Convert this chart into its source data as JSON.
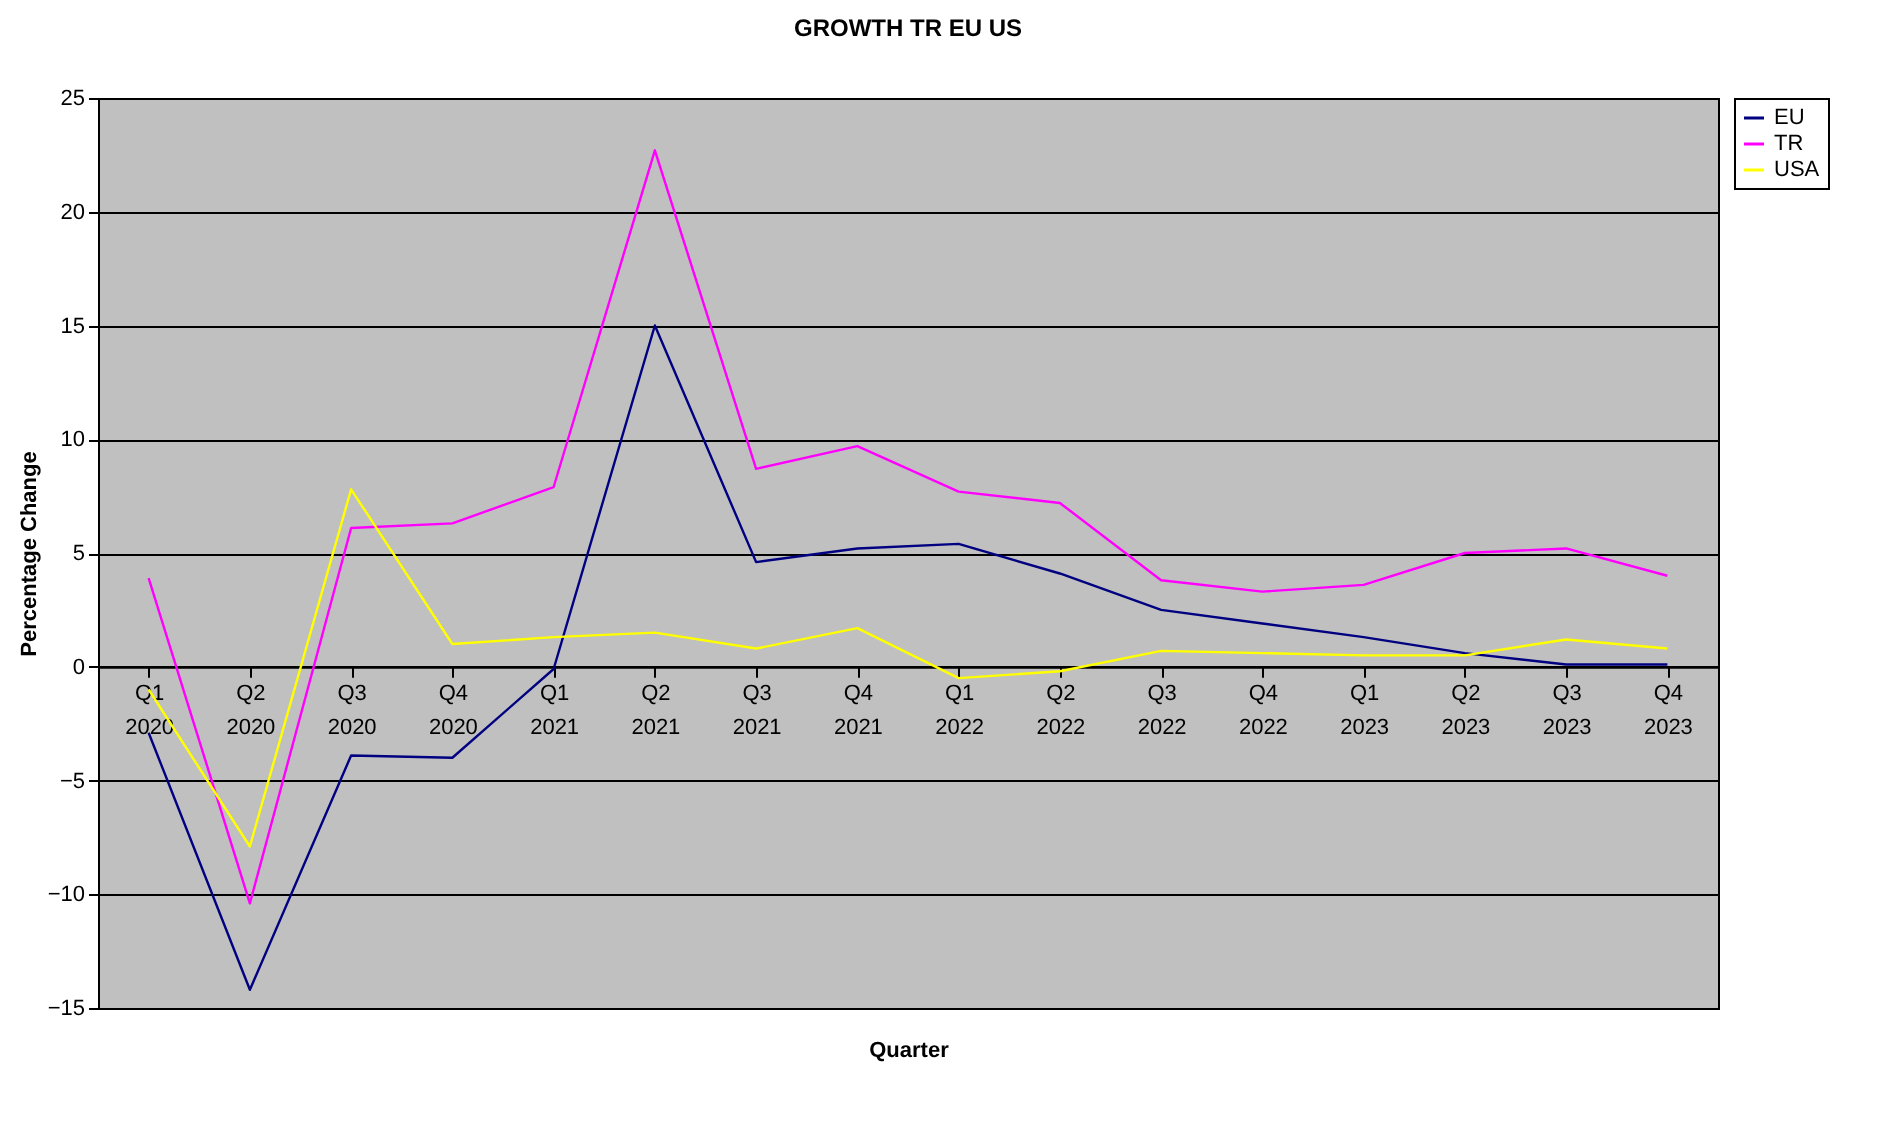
{
  "chart_data": {
    "type": "line",
    "title": "GROWTH TR EU US",
    "xlabel": "Quarter",
    "ylabel": "Percentage Change",
    "categories": [
      "Q1\n2020",
      "Q2\n2020",
      "Q3\n2020",
      "Q4\n2020",
      "Q1\n2021",
      "Q2\n2021",
      "Q3\n2021",
      "Q4\n2021",
      "Q1\n2022",
      "Q2\n2022",
      "Q3\n2022",
      "Q4\n2022",
      "Q1\n2023",
      "Q2\n2023",
      "Q3\n2023",
      "Q4\n2023"
    ],
    "series": [
      {
        "name": "EU",
        "color": "#000080",
        "values": [
          -2.9,
          -14.2,
          -3.9,
          -4.0,
          -0.1,
          15.0,
          4.6,
          5.2,
          5.4,
          4.1,
          2.5,
          1.9,
          1.3,
          0.6,
          0.1,
          0.1
        ]
      },
      {
        "name": "TR",
        "color": "#ff00ff",
        "values": [
          3.9,
          -10.4,
          6.1,
          6.3,
          7.9,
          22.7,
          8.7,
          9.7,
          7.7,
          7.2,
          3.8,
          3.3,
          3.6,
          5.0,
          5.2,
          4.0
        ]
      },
      {
        "name": "USA",
        "color": "#ffff00",
        "values": [
          -1.0,
          -7.9,
          7.8,
          1.0,
          1.3,
          1.5,
          0.8,
          1.7,
          -0.5,
          -0.2,
          0.7,
          0.6,
          0.5,
          0.5,
          1.2,
          0.8
        ]
      }
    ],
    "ylim": [
      -15,
      25
    ],
    "yticks": [
      -15,
      -10,
      -5,
      0,
      5,
      10,
      15,
      20,
      25
    ],
    "grid": "y",
    "legend": "right",
    "marker": "none",
    "line_style": "solid"
  }
}
